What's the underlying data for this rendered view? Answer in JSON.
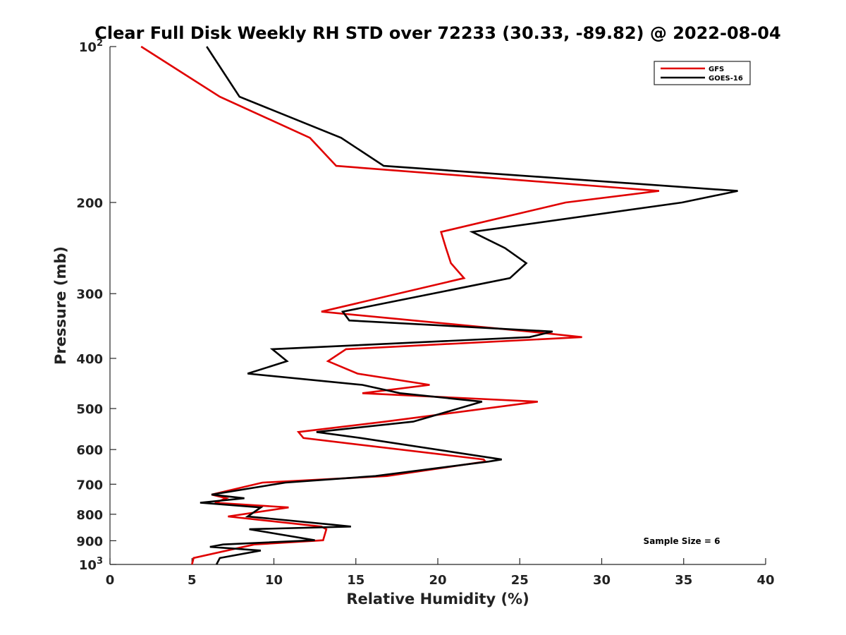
{
  "chart_data": {
    "type": "line",
    "title": "Clear Full Disk Weekly RH STD over 72233 (30.33, -89.82) @ 2022-08-04",
    "xlabel": "Relative Humidity (%)",
    "ylabel": "Pressure (mb)",
    "xlim": [
      0,
      40
    ],
    "ylim": [
      100,
      1000
    ],
    "y_scale": "log",
    "y_reversed": true,
    "x_ticks": [
      0,
      5,
      10,
      15,
      20,
      25,
      30,
      35,
      40
    ],
    "x_tick_labels": [
      "0",
      "5",
      "10",
      "15",
      "20",
      "25",
      "30",
      "35",
      "40"
    ],
    "y_ticks": [
      100,
      200,
      300,
      400,
      500,
      600,
      700,
      800,
      900,
      1000
    ],
    "y_tick_labels": [
      {
        "base": "10",
        "exp": "2"
      },
      {
        "base": "200",
        "exp": ""
      },
      {
        "base": "300",
        "exp": ""
      },
      {
        "base": "400",
        "exp": ""
      },
      {
        "base": "500",
        "exp": ""
      },
      {
        "base": "600",
        "exp": ""
      },
      {
        "base": "700",
        "exp": ""
      },
      {
        "base": "800",
        "exp": ""
      },
      {
        "base": "900",
        "exp": ""
      },
      {
        "base": "10",
        "exp": "3"
      }
    ],
    "grid": false,
    "legend_position": "top-right",
    "annotation": "Sample Size = 6",
    "series": [
      {
        "name": "GFS",
        "color": "#e00000",
        "points": [
          [
            1.9,
            100
          ],
          [
            6.7,
            125
          ],
          [
            12.2,
            150
          ],
          [
            13.8,
            170
          ],
          [
            33.5,
            190
          ],
          [
            27.8,
            200
          ],
          [
            20.2,
            228
          ],
          [
            20.5,
            245
          ],
          [
            20.8,
            262
          ],
          [
            21.6,
            280
          ],
          [
            12.9,
            325
          ],
          [
            25.6,
            355
          ],
          [
            28.8,
            364
          ],
          [
            14.4,
            384
          ],
          [
            13.3,
            405
          ],
          [
            15.1,
            428
          ],
          [
            19.5,
            450
          ],
          [
            15.4,
            467
          ],
          [
            26.1,
            485
          ],
          [
            16.8,
            530
          ],
          [
            11.5,
            555
          ],
          [
            11.8,
            570
          ],
          [
            22.8,
            627
          ],
          [
            22.9,
            633
          ],
          [
            16.9,
            675
          ],
          [
            9.3,
            695
          ],
          [
            6.2,
            733
          ],
          [
            7.1,
            745
          ],
          [
            6.4,
            760
          ],
          [
            10.9,
            776
          ],
          [
            7.2,
            808
          ],
          [
            12.9,
            845
          ],
          [
            13.2,
            855
          ],
          [
            13.0,
            898
          ],
          [
            8.8,
            915
          ],
          [
            5.1,
            972
          ],
          [
            5.0,
            1000
          ]
        ]
      },
      {
        "name": "GOES-16",
        "color": "#000000",
        "points": [
          [
            5.9,
            100
          ],
          [
            7.9,
            125
          ],
          [
            14.1,
            150
          ],
          [
            16.7,
            170
          ],
          [
            38.3,
            190
          ],
          [
            34.9,
            200
          ],
          [
            22.1,
            228
          ],
          [
            24.1,
            245
          ],
          [
            25.4,
            262
          ],
          [
            24.4,
            280
          ],
          [
            14.2,
            325
          ],
          [
            14.6,
            338
          ],
          [
            27.0,
            355
          ],
          [
            25.6,
            364
          ],
          [
            9.9,
            384
          ],
          [
            10.8,
            405
          ],
          [
            8.4,
            428
          ],
          [
            15.4,
            450
          ],
          [
            17.7,
            467
          ],
          [
            22.7,
            485
          ],
          [
            18.5,
            530
          ],
          [
            12.6,
            555
          ],
          [
            15.3,
            570
          ],
          [
            23.9,
            627
          ],
          [
            23.1,
            633
          ],
          [
            16.2,
            675
          ],
          [
            10.7,
            695
          ],
          [
            6.2,
            733
          ],
          [
            8.2,
            745
          ],
          [
            5.5,
            760
          ],
          [
            9.2,
            776
          ],
          [
            8.4,
            808
          ],
          [
            13.6,
            838
          ],
          [
            14.7,
            845
          ],
          [
            8.5,
            855
          ],
          [
            12.5,
            898
          ],
          [
            6.9,
            915
          ],
          [
            6.1,
            925
          ],
          [
            9.2,
            940
          ],
          [
            6.7,
            972
          ],
          [
            6.5,
            1000
          ]
        ]
      }
    ]
  }
}
